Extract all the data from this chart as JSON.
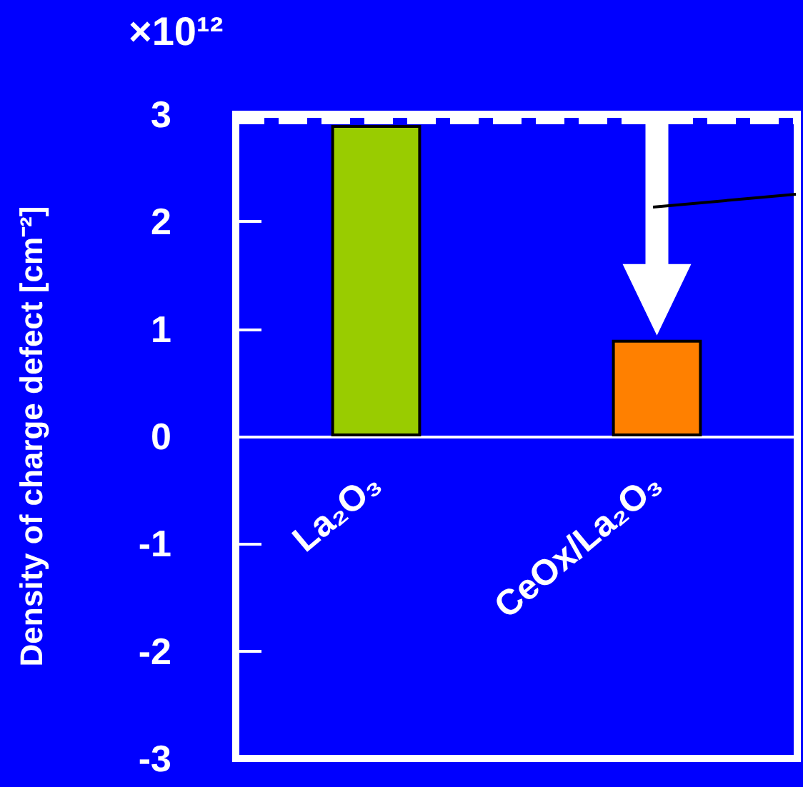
{
  "chart_data": {
    "type": "bar",
    "ylabel": "Density of charge defect [cm⁻²]",
    "annotations": [
      "×10¹²"
    ],
    "categories": [
      "La₂O₃",
      "CeOx/La₂O₃"
    ],
    "values": [
      2.9,
      0.9
    ],
    "colors": [
      "#99cc00",
      "#ff8000"
    ],
    "ylim": [
      -3,
      3
    ],
    "yticks": [
      -3,
      -2,
      -1,
      0,
      1,
      2,
      3
    ],
    "ref_lines": [
      {
        "axis": "y",
        "value": 2.95,
        "color": "#ffffff",
        "line_style": "dashed"
      }
    ],
    "grid": false
  }
}
